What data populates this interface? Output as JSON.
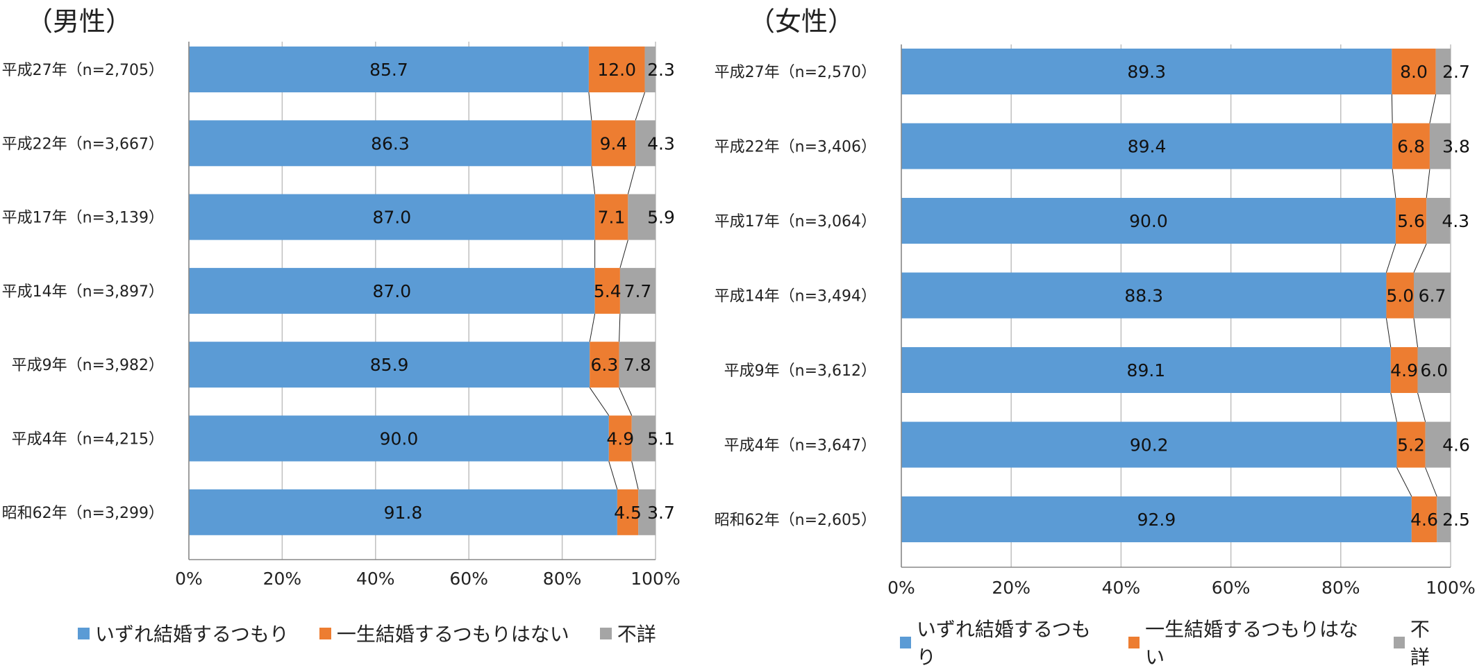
{
  "chart_data": [
    {
      "type": "bar",
      "orientation": "horizontal",
      "stacked": true,
      "title": "（男性）",
      "categories": [
        "平成27年（n=2,705）",
        "平成22年（n=3,667）",
        "平成17年（n=3,139）",
        "平成14年（n=3,897）",
        "平成9年（n=3,982）",
        "平成4年（n=4,215）",
        "昭和62年（n=3,299）"
      ],
      "series": [
        {
          "name": "いずれ結婚するつもり",
          "color": "#5B9BD5",
          "values": [
            85.7,
            86.3,
            87.0,
            87.0,
            85.9,
            90.0,
            91.8
          ]
        },
        {
          "name": "一生結婚するつもりはない",
          "color": "#ED7D31",
          "values": [
            12.0,
            9.4,
            7.1,
            5.4,
            6.3,
            4.9,
            4.5
          ]
        },
        {
          "name": "不詳",
          "color": "#A5A5A5",
          "values": [
            2.3,
            4.3,
            5.9,
            7.7,
            7.8,
            5.1,
            3.7
          ]
        }
      ],
      "labels": [
        [
          "85.7",
          "12.0",
          "2.3"
        ],
        [
          "86.3",
          "9.4",
          "4.3"
        ],
        [
          "87.0",
          "7.1",
          "5.9"
        ],
        [
          "87.0",
          "5.4",
          "7.7"
        ],
        [
          "85.9",
          "6.3",
          "7.8"
        ],
        [
          "90.0",
          "4.9",
          "5.1"
        ],
        [
          "91.8",
          "4.5",
          "3.7"
        ]
      ],
      "xlim": [
        0,
        100
      ],
      "xticks": [
        "0%",
        "20%",
        "40%",
        "60%",
        "80%",
        "100%"
      ],
      "grid": true,
      "series_lines": true,
      "legend": "bottom"
    },
    {
      "type": "bar",
      "orientation": "horizontal",
      "stacked": true,
      "title": "（女性）",
      "categories": [
        "平成27年（n=2,570）",
        "平成22年（n=3,406）",
        "平成17年（n=3,064）",
        "平成14年（n=3,494）",
        "平成9年（n=3,612）",
        "平成4年（n=3,647）",
        "昭和62年（n=2,605）"
      ],
      "series": [
        {
          "name": "いずれ結婚するつもり",
          "color": "#5B9BD5",
          "values": [
            89.3,
            89.4,
            90.0,
            88.3,
            89.1,
            90.2,
            92.9
          ]
        },
        {
          "name": "一生結婚するつもりはない",
          "color": "#ED7D31",
          "values": [
            8.0,
            6.8,
            5.6,
            5.0,
            4.9,
            5.2,
            4.6
          ]
        },
        {
          "name": "不詳",
          "color": "#A5A5A5",
          "values": [
            2.7,
            3.8,
            4.3,
            6.7,
            6.0,
            4.6,
            2.5
          ]
        }
      ],
      "labels": [
        [
          "89.3",
          "8.0",
          "2.7"
        ],
        [
          "89.4",
          "6.8",
          "3.8"
        ],
        [
          "90.0",
          "5.6",
          "4.3"
        ],
        [
          "88.3",
          "5.0",
          "6.7"
        ],
        [
          "89.1",
          "4.9",
          "6.0"
        ],
        [
          "90.2",
          "5.2",
          "4.6"
        ],
        [
          "92.9",
          "4.6",
          "2.5"
        ]
      ],
      "xlim": [
        0,
        100
      ],
      "xticks": [
        "0%",
        "20%",
        "40%",
        "60%",
        "80%",
        "100%"
      ],
      "grid": true,
      "series_lines": true,
      "legend": "bottom"
    }
  ],
  "legend": [
    {
      "label": "いずれ結婚するつもり",
      "color": "#5B9BD5"
    },
    {
      "label": "一生結婚するつもりはない",
      "color": "#ED7D31"
    },
    {
      "label": "不詳",
      "color": "#A5A5A5"
    }
  ]
}
